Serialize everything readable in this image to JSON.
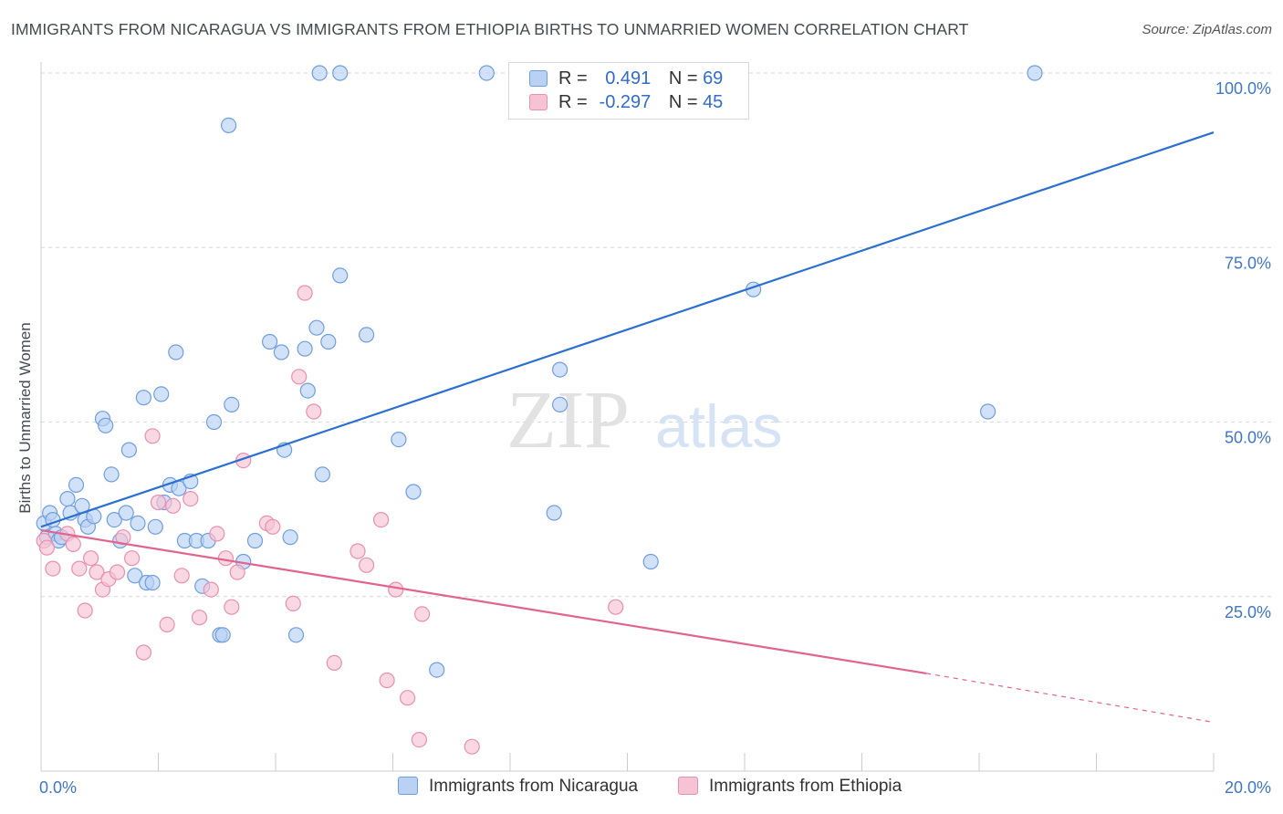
{
  "title": "IMMIGRANTS FROM NICARAGUA VS IMMIGRANTS FROM ETHIOPIA BIRTHS TO UNMARRIED WOMEN CORRELATION CHART",
  "source": "Source: ZipAtlas.com",
  "watermark": {
    "zip": "ZIP",
    "atlas": "atlas"
  },
  "legend": {
    "series1": {
      "r_label": "R =",
      "r_value": "0.491",
      "n_label": "N =",
      "n_value": "69"
    },
    "series2": {
      "r_label": "R =",
      "r_value": "-0.297",
      "n_label": "N =",
      "n_value": "45"
    }
  },
  "bottom_legend": {
    "series1": "Immigrants from Nicaragua",
    "series2": "Immigrants from Ethiopia"
  },
  "colors": {
    "blue_fill": "#b9d1f3",
    "blue_stroke": "#6f9ee0",
    "blue_line": "#2b6fcf",
    "pink_fill": "#f6c3d4",
    "pink_stroke": "#ea8fae",
    "pink_line": "#e0648f",
    "tick_text": "#3f76c9",
    "grid": "#d9d9d9"
  },
  "chart_data": {
    "type": "scatter",
    "title": "IMMIGRANTS FROM NICARAGUA VS IMMIGRANTS FROM ETHIOPIA BIRTHS TO UNMARRIED WOMEN CORRELATION CHART",
    "ylabel": "Births to Unmarried Women",
    "xlabel": "",
    "xlim": [
      0,
      20
    ],
    "ylim": [
      0,
      100
    ],
    "x_ticks": [
      {
        "value": 0,
        "label": "0.0%"
      },
      {
        "value": 20,
        "label": "20.0%"
      }
    ],
    "y_ticks": [
      {
        "value": 25,
        "label": "25.0%"
      },
      {
        "value": 50,
        "label": "50.0%"
      },
      {
        "value": 75,
        "label": "75.0%"
      },
      {
        "value": 100,
        "label": "100.0%"
      }
    ],
    "grid": true,
    "legend_position": "top-center",
    "series": [
      {
        "name": "Immigrants from Nicaragua",
        "color": "#6f9ee0",
        "trend": {
          "x": [
            0.0,
            20.0
          ],
          "y": [
            35.0,
            91.5
          ]
        },
        "points": [
          [
            0.05,
            35.5
          ],
          [
            0.1,
            33.5
          ],
          [
            0.15,
            37
          ],
          [
            0.2,
            36
          ],
          [
            0.25,
            34
          ],
          [
            0.3,
            33
          ],
          [
            0.35,
            33.5
          ],
          [
            0.45,
            39
          ],
          [
            0.5,
            37
          ],
          [
            0.6,
            41
          ],
          [
            0.7,
            38
          ],
          [
            0.75,
            36
          ],
          [
            0.8,
            35
          ],
          [
            0.9,
            36.5
          ],
          [
            1.05,
            50.5
          ],
          [
            1.1,
            49.5
          ],
          [
            1.2,
            42.5
          ],
          [
            1.25,
            36
          ],
          [
            1.35,
            33
          ],
          [
            1.45,
            37
          ],
          [
            1.5,
            46
          ],
          [
            1.6,
            28
          ],
          [
            1.65,
            35.5
          ],
          [
            1.75,
            53.5
          ],
          [
            1.8,
            27
          ],
          [
            1.9,
            27
          ],
          [
            1.95,
            35
          ],
          [
            2.05,
            54
          ],
          [
            2.1,
            38.5
          ],
          [
            2.2,
            41
          ],
          [
            2.3,
            60
          ],
          [
            2.35,
            40.5
          ],
          [
            2.45,
            33
          ],
          [
            2.55,
            41.5
          ],
          [
            2.65,
            33
          ],
          [
            2.75,
            26.5
          ],
          [
            2.85,
            33
          ],
          [
            2.95,
            50
          ],
          [
            3.05,
            19.5
          ],
          [
            3.1,
            19.5
          ],
          [
            3.2,
            92.5
          ],
          [
            3.25,
            52.5
          ],
          [
            3.45,
            30
          ],
          [
            3.65,
            33
          ],
          [
            3.9,
            61.5
          ],
          [
            4.1,
            60
          ],
          [
            4.15,
            46
          ],
          [
            4.25,
            33.5
          ],
          [
            4.35,
            19.5
          ],
          [
            4.5,
            60.5
          ],
          [
            4.55,
            54.5
          ],
          [
            4.7,
            63.5
          ],
          [
            4.75,
            100
          ],
          [
            4.8,
            42.5
          ],
          [
            4.9,
            61.5
          ],
          [
            5.1,
            71
          ],
          [
            5.1,
            100
          ],
          [
            5.55,
            62.5
          ],
          [
            6.1,
            47.5
          ],
          [
            6.35,
            40
          ],
          [
            6.75,
            14.5
          ],
          [
            7.6,
            100
          ],
          [
            8.75,
            37
          ],
          [
            8.85,
            57.5
          ],
          [
            8.85,
            52.5
          ],
          [
            10.4,
            30
          ],
          [
            12.15,
            69
          ],
          [
            16.15,
            51.5
          ],
          [
            16.95,
            100
          ]
        ]
      },
      {
        "name": "Immigrants from Ethiopia",
        "color": "#ea8fae",
        "trend": {
          "x": [
            0.0,
            15.1
          ],
          "y": [
            34.5,
            14.0
          ],
          "dashed_to": {
            "x": 20.0,
            "y": 7.0
          }
        },
        "points": [
          [
            0.05,
            33
          ],
          [
            0.1,
            32
          ],
          [
            0.2,
            29
          ],
          [
            0.45,
            34
          ],
          [
            0.55,
            32.5
          ],
          [
            0.65,
            29
          ],
          [
            0.75,
            23
          ],
          [
            0.85,
            30.5
          ],
          [
            0.95,
            28.5
          ],
          [
            1.05,
            26
          ],
          [
            1.15,
            27.5
          ],
          [
            1.3,
            28.5
          ],
          [
            1.4,
            33.5
          ],
          [
            1.55,
            30.5
          ],
          [
            1.75,
            17
          ],
          [
            1.9,
            48
          ],
          [
            2.0,
            38.5
          ],
          [
            2.15,
            21
          ],
          [
            2.25,
            38
          ],
          [
            2.4,
            28
          ],
          [
            2.55,
            39
          ],
          [
            2.7,
            22
          ],
          [
            2.9,
            26
          ],
          [
            3.0,
            34
          ],
          [
            3.15,
            30.5
          ],
          [
            3.25,
            23.5
          ],
          [
            3.35,
            28.5
          ],
          [
            3.45,
            44.5
          ],
          [
            3.85,
            35.5
          ],
          [
            3.95,
            35
          ],
          [
            4.3,
            24
          ],
          [
            4.4,
            56.5
          ],
          [
            4.5,
            68.5
          ],
          [
            4.65,
            51.5
          ],
          [
            5.0,
            15.5
          ],
          [
            5.4,
            31.5
          ],
          [
            5.55,
            29.5
          ],
          [
            5.8,
            36
          ],
          [
            5.9,
            13
          ],
          [
            6.05,
            26
          ],
          [
            6.25,
            10.5
          ],
          [
            6.45,
            4.5
          ],
          [
            6.5,
            22.5
          ],
          [
            7.35,
            3.5
          ],
          [
            9.8,
            23.5
          ]
        ]
      }
    ]
  }
}
